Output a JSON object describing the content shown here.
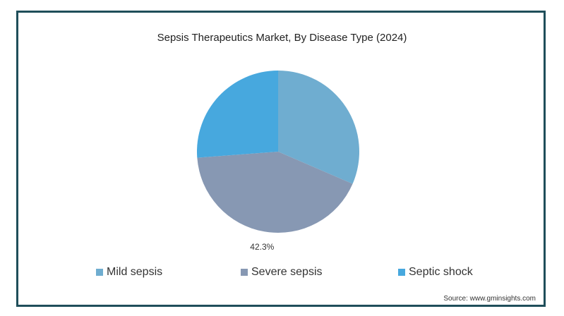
{
  "chart_data": {
    "type": "pie",
    "title": "Sepsis Therapeutics Market, By Disease Type (2024)",
    "slices": [
      {
        "name": "Mild sepsis",
        "value": 31.5,
        "color": "#6fadd0",
        "label": ""
      },
      {
        "name": "Severe sepsis",
        "value": 42.3,
        "color": "#8798b3",
        "label": "42.3%"
      },
      {
        "name": "Septic shock",
        "value": 26.2,
        "color": "#47a8de",
        "label": ""
      }
    ],
    "legend_position": "bottom"
  },
  "source": "Source: www.gminsights.com"
}
